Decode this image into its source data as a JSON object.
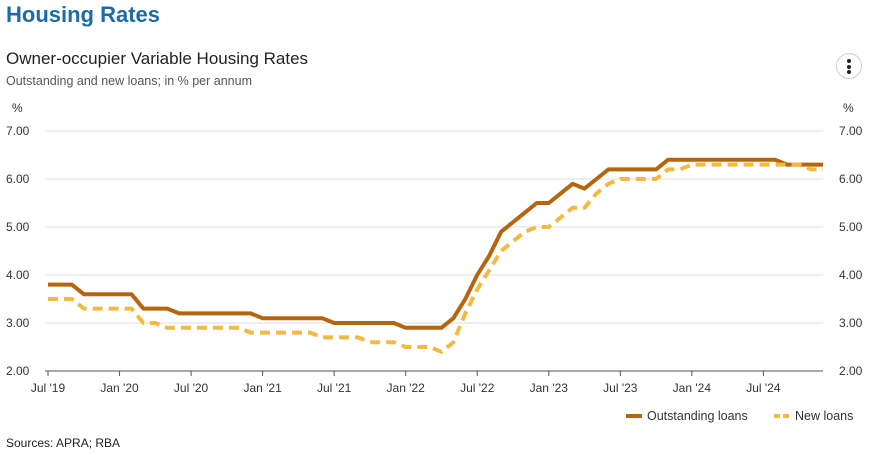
{
  "page": {
    "heading": "Housing Rates",
    "sources": "Sources: APRA; RBA"
  },
  "chart_data": {
    "type": "line",
    "title": "Owner-occupier Variable Housing Rates",
    "subtitle": "Outstanding and new loans; in % per annum",
    "y_unit_left": "%",
    "y_unit_right": "%",
    "ylim": [
      2.0,
      7.0
    ],
    "y_ticks": [
      "2.00",
      "3.00",
      "4.00",
      "5.00",
      "6.00",
      "7.00"
    ],
    "x_ticks": [
      "Jul '19",
      "Jan '20",
      "Jul '20",
      "Jan '21",
      "Jul '21",
      "Jan '22",
      "Jul '22",
      "Jan '23",
      "Jul '23",
      "Jan '24",
      "Jul '24"
    ],
    "xlim": [
      "2019-07",
      "2024-12"
    ],
    "grid": true,
    "legend_position": "bottom-right",
    "series": [
      {
        "name": "Outstanding loans",
        "color": "#b5650d",
        "style": "solid",
        "points": [
          [
            "2019-07",
            3.8
          ],
          [
            "2019-08",
            3.8
          ],
          [
            "2019-09",
            3.8
          ],
          [
            "2019-10",
            3.6
          ],
          [
            "2019-11",
            3.6
          ],
          [
            "2019-12",
            3.6
          ],
          [
            "2020-01",
            3.6
          ],
          [
            "2020-02",
            3.6
          ],
          [
            "2020-03",
            3.3
          ],
          [
            "2020-04",
            3.3
          ],
          [
            "2020-05",
            3.3
          ],
          [
            "2020-06",
            3.2
          ],
          [
            "2020-07",
            3.2
          ],
          [
            "2020-08",
            3.2
          ],
          [
            "2020-09",
            3.2
          ],
          [
            "2020-10",
            3.2
          ],
          [
            "2020-11",
            3.2
          ],
          [
            "2020-12",
            3.2
          ],
          [
            "2021-01",
            3.1
          ],
          [
            "2021-02",
            3.1
          ],
          [
            "2021-03",
            3.1
          ],
          [
            "2021-04",
            3.1
          ],
          [
            "2021-05",
            3.1
          ],
          [
            "2021-06",
            3.1
          ],
          [
            "2021-07",
            3.0
          ],
          [
            "2021-08",
            3.0
          ],
          [
            "2021-09",
            3.0
          ],
          [
            "2021-10",
            3.0
          ],
          [
            "2021-11",
            3.0
          ],
          [
            "2021-12",
            3.0
          ],
          [
            "2022-01",
            2.9
          ],
          [
            "2022-02",
            2.9
          ],
          [
            "2022-03",
            2.9
          ],
          [
            "2022-04",
            2.9
          ],
          [
            "2022-05",
            3.1
          ],
          [
            "2022-06",
            3.5
          ],
          [
            "2022-07",
            4.0
          ],
          [
            "2022-08",
            4.4
          ],
          [
            "2022-09",
            4.9
          ],
          [
            "2022-10",
            5.1
          ],
          [
            "2022-11",
            5.3
          ],
          [
            "2022-12",
            5.5
          ],
          [
            "2023-01",
            5.5
          ],
          [
            "2023-02",
            5.7
          ],
          [
            "2023-03",
            5.9
          ],
          [
            "2023-04",
            5.8
          ],
          [
            "2023-05",
            6.0
          ],
          [
            "2023-06",
            6.2
          ],
          [
            "2023-07",
            6.2
          ],
          [
            "2023-08",
            6.2
          ],
          [
            "2023-09",
            6.2
          ],
          [
            "2023-10",
            6.2
          ],
          [
            "2023-11",
            6.4
          ],
          [
            "2023-12",
            6.4
          ],
          [
            "2024-01",
            6.4
          ],
          [
            "2024-02",
            6.4
          ],
          [
            "2024-03",
            6.4
          ],
          [
            "2024-04",
            6.4
          ],
          [
            "2024-05",
            6.4
          ],
          [
            "2024-06",
            6.4
          ],
          [
            "2024-07",
            6.4
          ],
          [
            "2024-08",
            6.4
          ],
          [
            "2024-09",
            6.3
          ],
          [
            "2024-10",
            6.3
          ],
          [
            "2024-11",
            6.3
          ],
          [
            "2024-12",
            6.3
          ]
        ]
      },
      {
        "name": "New loans",
        "color": "#f5b942",
        "style": "dashed",
        "points": [
          [
            "2019-07",
            3.5
          ],
          [
            "2019-08",
            3.5
          ],
          [
            "2019-09",
            3.5
          ],
          [
            "2019-10",
            3.3
          ],
          [
            "2019-11",
            3.3
          ],
          [
            "2019-12",
            3.3
          ],
          [
            "2020-01",
            3.3
          ],
          [
            "2020-02",
            3.3
          ],
          [
            "2020-03",
            3.0
          ],
          [
            "2020-04",
            3.0
          ],
          [
            "2020-05",
            2.9
          ],
          [
            "2020-06",
            2.9
          ],
          [
            "2020-07",
            2.9
          ],
          [
            "2020-08",
            2.9
          ],
          [
            "2020-09",
            2.9
          ],
          [
            "2020-10",
            2.9
          ],
          [
            "2020-11",
            2.9
          ],
          [
            "2020-12",
            2.8
          ],
          [
            "2021-01",
            2.8
          ],
          [
            "2021-02",
            2.8
          ],
          [
            "2021-03",
            2.8
          ],
          [
            "2021-04",
            2.8
          ],
          [
            "2021-05",
            2.8
          ],
          [
            "2021-06",
            2.7
          ],
          [
            "2021-07",
            2.7
          ],
          [
            "2021-08",
            2.7
          ],
          [
            "2021-09",
            2.7
          ],
          [
            "2021-10",
            2.6
          ],
          [
            "2021-11",
            2.6
          ],
          [
            "2021-12",
            2.6
          ],
          [
            "2022-01",
            2.5
          ],
          [
            "2022-02",
            2.5
          ],
          [
            "2022-03",
            2.5
          ],
          [
            "2022-04",
            2.4
          ],
          [
            "2022-05",
            2.6
          ],
          [
            "2022-06",
            3.2
          ],
          [
            "2022-07",
            3.7
          ],
          [
            "2022-08",
            4.1
          ],
          [
            "2022-09",
            4.5
          ],
          [
            "2022-10",
            4.7
          ],
          [
            "2022-11",
            4.9
          ],
          [
            "2022-12",
            5.0
          ],
          [
            "2023-01",
            5.0
          ],
          [
            "2023-02",
            5.2
          ],
          [
            "2023-03",
            5.4
          ],
          [
            "2023-04",
            5.4
          ],
          [
            "2023-05",
            5.7
          ],
          [
            "2023-06",
            5.9
          ],
          [
            "2023-07",
            6.0
          ],
          [
            "2023-08",
            6.0
          ],
          [
            "2023-09",
            6.0
          ],
          [
            "2023-10",
            6.0
          ],
          [
            "2023-11",
            6.2
          ],
          [
            "2023-12",
            6.2
          ],
          [
            "2024-01",
            6.3
          ],
          [
            "2024-02",
            6.3
          ],
          [
            "2024-03",
            6.3
          ],
          [
            "2024-04",
            6.3
          ],
          [
            "2024-05",
            6.3
          ],
          [
            "2024-06",
            6.3
          ],
          [
            "2024-07",
            6.3
          ],
          [
            "2024-08",
            6.3
          ],
          [
            "2024-09",
            6.3
          ],
          [
            "2024-10",
            6.3
          ],
          [
            "2024-11",
            6.2
          ],
          [
            "2024-12",
            6.2
          ]
        ]
      }
    ]
  },
  "menu": {
    "icon": "more-vertical-icon"
  }
}
